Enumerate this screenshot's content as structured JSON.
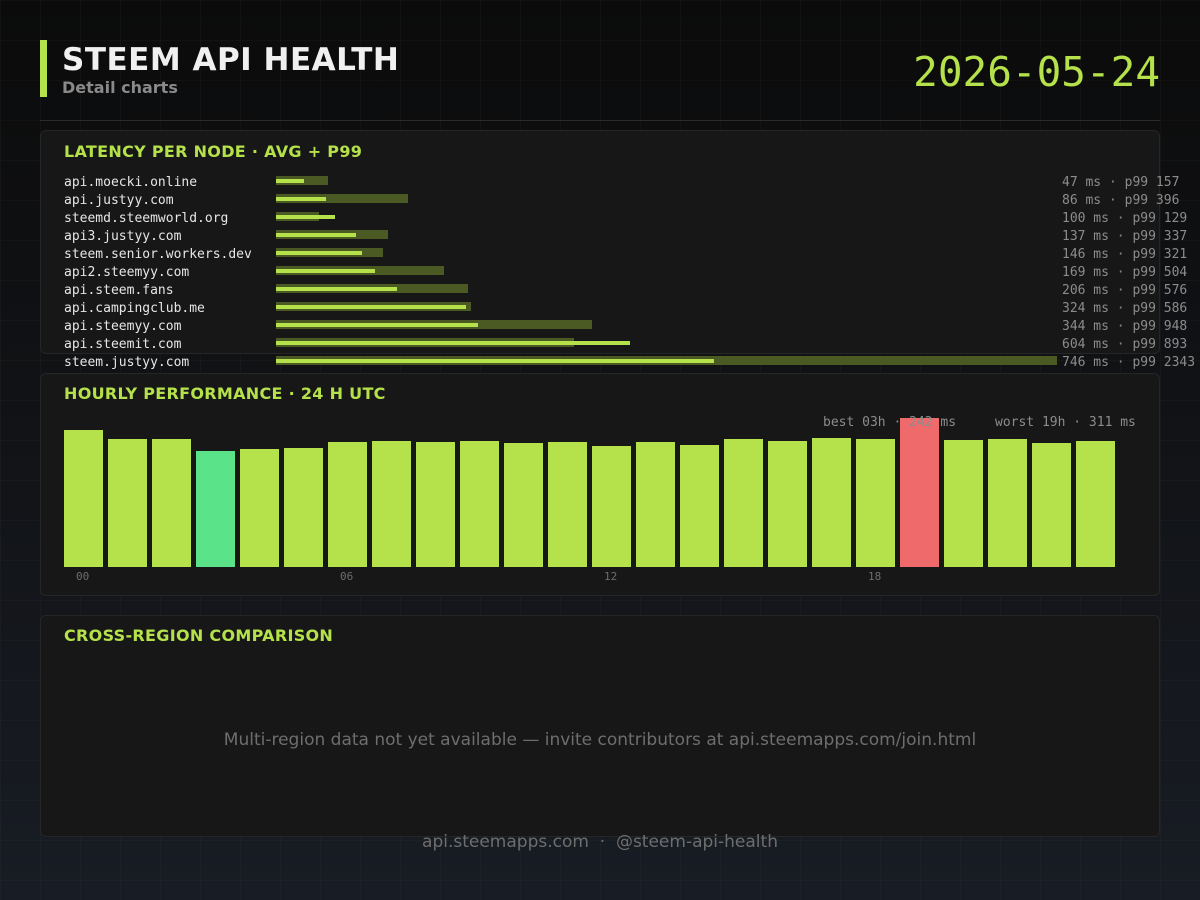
{
  "header": {
    "title": "STEEM API HEALTH",
    "subtitle": "Detail charts",
    "date": "2026-05-24"
  },
  "colors": {
    "accent": "#b5e24a",
    "p99_bar": "#4a5a22",
    "best": "#5be38a",
    "worst": "#ef6b6b"
  },
  "latency": {
    "title": "LATENCY PER NODE  ·  AVG + P99"
  },
  "hourly": {
    "title": "HOURLY PERFORMANCE  ·  24 H UTC",
    "best_label": "best 03h · 242 ms",
    "worst_label": "worst 19h · 311 ms"
  },
  "cross_region": {
    "title": "CROSS-REGION COMPARISON",
    "message": "Multi-region data not yet available — invite contributors at api.steemapps.com/join.html"
  },
  "footer": {
    "text": "api.steemapps.com  ·  @steem-api-health"
  },
  "chart_data": [
    {
      "type": "bar",
      "orientation": "horizontal",
      "title": "LATENCY PER NODE  ·  AVG + P99",
      "unit": "ms",
      "xlim": [
        0,
        2343
      ],
      "categories": [
        "api.moecki.online",
        "api.justyy.com",
        "steemd.steemworld.org",
        "api3.justyy.com",
        "steem.senior.workers.dev",
        "api2.steemyy.com",
        "api.steem.fans",
        "api.campingclub.me",
        "api.steemyy.com",
        "api.steemit.com",
        "steem.justyy.com"
      ],
      "series": [
        {
          "name": "avg",
          "values": [
            47,
            86,
            100,
            137,
            146,
            169,
            206,
            324,
            344,
            604,
            746
          ]
        },
        {
          "name": "p99",
          "values": [
            157,
            396,
            129,
            337,
            321,
            504,
            576,
            586,
            948,
            893,
            2343
          ]
        }
      ],
      "value_labels": [
        "47 ms  · p99 157",
        "86 ms  · p99 396",
        "100 ms  · p99 129",
        "137 ms  · p99 337",
        "146 ms  · p99 321",
        "169 ms  · p99 504",
        "206 ms  · p99 576",
        "324 ms  · p99 586",
        "344 ms  · p99 948",
        "604 ms  · p99 893",
        "746 ms  · p99 2343"
      ]
    },
    {
      "type": "bar",
      "title": "HOURLY PERFORMANCE  ·  24 H UTC",
      "unit": "ms",
      "hours": [
        "00",
        "01",
        "02",
        "03",
        "04",
        "05",
        "06",
        "07",
        "08",
        "09",
        "10",
        "11",
        "12",
        "13",
        "14",
        "15",
        "16",
        "17",
        "18",
        "19",
        "20",
        "21",
        "22",
        "23"
      ],
      "tick_labels": [
        "00",
        "06",
        "12",
        "18"
      ],
      "values": [
        285,
        267,
        267,
        242,
        246,
        248,
        261,
        263,
        261,
        263,
        258,
        261,
        253,
        261,
        255,
        268,
        263,
        270,
        268,
        311,
        265,
        268,
        259,
        263
      ],
      "ylim": [
        0,
        311
      ],
      "best": {
        "hour": "03h",
        "value": 242
      },
      "worst": {
        "hour": "19h",
        "value": 311
      }
    }
  ]
}
